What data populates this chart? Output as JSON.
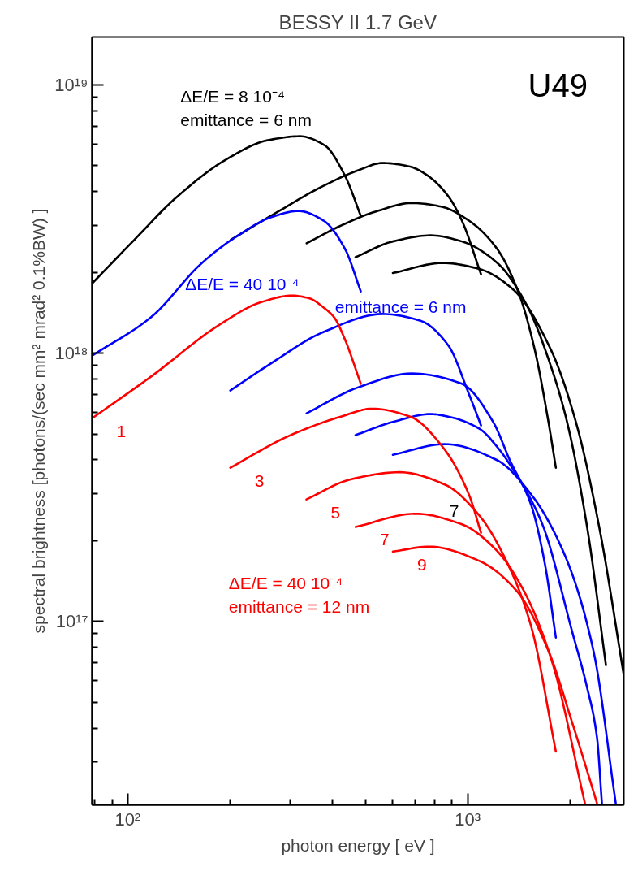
{
  "chart_data": {
    "type": "line",
    "title": "BESSY II 1.7 GeV",
    "xlabel": "photon energy [ eV ]",
    "ylabel": "spectral brightness [photons/(sec mm² mrad² 0.1%BW) ]",
    "log": "xy",
    "xlim": [
      78.6,
      2880
    ],
    "ylim": [
      2.07e+16,
      1.51e+19
    ],
    "xticks": [
      {
        "value": 80,
        "label": null
      },
      {
        "value": 90,
        "label": null
      },
      {
        "value": 100,
        "label": "10²"
      },
      {
        "value": 200,
        "label": null
      },
      {
        "value": 300,
        "label": null
      },
      {
        "value": 400,
        "label": null
      },
      {
        "value": 500,
        "label": null
      },
      {
        "value": 600,
        "label": null
      },
      {
        "value": 700,
        "label": null
      },
      {
        "value": 800,
        "label": null
      },
      {
        "value": 900,
        "label": null
      },
      {
        "value": 1000,
        "label": "10³"
      },
      {
        "value": 2000,
        "label": null
      }
    ],
    "yticks": [
      {
        "value": 3e+16,
        "label": null
      },
      {
        "value": 4e+16,
        "label": null
      },
      {
        "value": 5e+16,
        "label": null
      },
      {
        "value": 6e+16,
        "label": null
      },
      {
        "value": 7e+16,
        "label": null
      },
      {
        "value": 8e+16,
        "label": null
      },
      {
        "value": 9e+16,
        "label": null
      },
      {
        "value": 1e+17,
        "label": "10¹⁷"
      },
      {
        "value": 2e+17,
        "label": null
      },
      {
        "value": 3e+17,
        "label": null
      },
      {
        "value": 4e+17,
        "label": null
      },
      {
        "value": 5e+17,
        "label": null
      },
      {
        "value": 6e+17,
        "label": null
      },
      {
        "value": 7e+17,
        "label": null
      },
      {
        "value": 8e+17,
        "label": null
      },
      {
        "value": 9e+17,
        "label": null
      },
      {
        "value": 1e+18,
        "label": "10¹⁸"
      },
      {
        "value": 2e+18,
        "label": null
      },
      {
        "value": 3e+18,
        "label": null
      },
      {
        "value": 4e+18,
        "label": null
      },
      {
        "value": 5e+18,
        "label": null
      },
      {
        "value": 6e+18,
        "label": null
      },
      {
        "value": 7e+18,
        "label": null
      },
      {
        "value": 8e+18,
        "label": null
      },
      {
        "value": 9e+18,
        "label": null
      },
      {
        "value": 1e+19,
        "label": "10¹⁹"
      }
    ],
    "line_style": "solid",
    "series": [
      {
        "color": "#000000",
        "x": [
          78.6,
          101.7,
          141,
          196,
          258,
          321,
          379,
          435,
          485
        ],
        "values": [
          1.82e+18,
          2.55e+18,
          3.87e+18,
          5.3e+18,
          6.22e+18,
          6.44e+18,
          5.97e+18,
          4.61e+18,
          3.25e+18
        ]
      },
      {
        "color": "#000000",
        "x": [
          201.3,
          271.3,
          377,
          477,
          562,
          677.6,
          760,
          877,
          962,
          1095
        ],
        "values": [
          2.65e+18,
          3.32e+18,
          4.21e+18,
          4.81e+18,
          5.12e+18,
          4.96e+18,
          4.61e+18,
          3.85e+18,
          3.12e+18,
          1.97e+18
        ]
      },
      {
        "color": "#000000",
        "x": [
          336,
          424,
          535.5,
          685,
          836,
          1009,
          1218,
          1413,
          1576,
          1730,
          1818
        ],
        "values": [
          2.57e+18,
          2.99e+18,
          3.37e+18,
          3.63e+18,
          3.52e+18,
          3.12e+18,
          2.46e+18,
          1.68e+18,
          1.03e+18,
          5.52e+17,
          3.74e+17
        ]
      },
      {
        "color": "#000000",
        "x": [
          468,
          602.6,
          779.6,
          962,
          1218,
          1493,
          1758,
          1963,
          2250,
          2552
        ],
        "values": [
          2.28e+18,
          2.61e+18,
          2.75e+18,
          2.61e+18,
          2.18e+18,
          1.51e+18,
          8.94e+17,
          5.52e+17,
          2.22e+17,
          6.86e+16
        ]
      },
      {
        "color": "#000000",
        "x": [
          602.6,
          846,
          1083,
          1367,
          1758,
          2084,
          2443,
          2880
        ],
        "values": [
          1.99e+18,
          2.17e+18,
          2.06e+18,
          1.72e+18,
          1.03e+18,
          5.52e+17,
          2.22e+17,
          6.31e+16
        ]
      },
      {
        "color": "#0000ff",
        "x": [
          78.6,
          117,
          166,
          209.6,
          265.4,
          318,
          377,
          435,
          485
        ],
        "values": [
          9.79e+17,
          1.36e+18,
          2.18e+18,
          2.73e+18,
          3.22e+18,
          3.39e+18,
          3.12e+18,
          2.46e+18,
          1.7e+18
        ]
      },
      {
        "color": "#0000ff",
        "x": [
          200.4,
          265.4,
          377,
          562,
          727.8,
          877,
          1009,
          1095
        ],
        "values": [
          7.26e+17,
          9.2e+17,
          1.2e+18,
          1.4e+18,
          1.32e+18,
          1.07e+18,
          7.04e+17,
          5.38e+17
        ]
      },
      {
        "color": "#0000ff",
        "x": [
          336,
          477,
          685,
          962,
          1189,
          1330,
          1539,
          1689,
          1818
        ],
        "values": [
          5.97e+17,
          7.46e+17,
          8.4e+17,
          7.69e+17,
          5.54e+17,
          4e+17,
          2.71e+17,
          1.63e+17,
          8.7e+16
        ]
      },
      {
        "color": "#0000ff",
        "x": [
          468,
          602.6,
          779.6,
          877,
          1083,
          1217,
          1367,
          1651,
          2037,
          2239,
          2402,
          2483
        ],
        "values": [
          4.95e+17,
          5.54e+17,
          5.93e+17,
          5.8e+17,
          5.23e+17,
          4.5e+17,
          3.65e+17,
          2.34e+17,
          9.01e+16,
          5.76e+16,
          3.69e+16,
          2.1e+16
        ]
      },
      {
        "color": "#0000ff",
        "x": [
          602.6,
          856,
          1217,
          1539,
          1941,
          2346,
          2727
        ],
        "values": [
          4.18e+17,
          4.58e+17,
          4e+17,
          2.97e+17,
          1.74e+17,
          7.75e+16,
          2.1e+16
        ]
      },
      {
        "name": "1",
        "color": "#ff0000",
        "x": [
          78.6,
          117,
          186.8,
          247,
          304.3,
          343,
          377,
          405,
          435,
          485
        ],
        "values": [
          5.72e+17,
          8.17e+17,
          1.28e+18,
          1.55e+18,
          1.64e+18,
          1.6e+18,
          1.48e+18,
          1.36e+18,
          1.13e+18,
          7.69e+17
        ]
      },
      {
        "name": "3",
        "color": "#ff0000",
        "x": [
          200.4,
          298.4,
          424,
          523.6,
          677.6,
          856,
          1009,
          1095
        ],
        "values": [
          3.74e+17,
          4.92e+17,
          5.8e+17,
          6.21e+17,
          5.8e+17,
          4.37e+17,
          2.97e+17,
          2.14e+17
        ]
      },
      {
        "name": "5",
        "color": "#ff0000",
        "x": [
          335.6,
          454.8,
          631,
          856,
          1083,
          1330,
          1539,
          1818
        ],
        "values": [
          2.85e+17,
          3.39e+17,
          3.6e+17,
          3.24e+17,
          2.48e+17,
          1.58e+17,
          9.55e+16,
          3.27e+16
        ]
      },
      {
        "name": "7",
        "color": "#ff0000",
        "x": [
          468,
          702,
          962,
          1217,
          1468,
          1771,
          2213
        ],
        "values": [
          2.25e+17,
          2.52e+17,
          2.3e+17,
          1.84e+17,
          1.29e+17,
          7.09e+16,
          2.1e+16
        ]
      },
      {
        "name": "9",
        "color": "#ff0000",
        "x": [
          602.6,
          771,
          1083,
          1401,
          1730,
          2037,
          2402
        ],
        "values": [
          1.82e+17,
          1.9e+17,
          1.68e+17,
          1.29e+17,
          7.75e+16,
          4.14e+16,
          2.1e+16
        ]
      }
    ],
    "annotations": [
      "U49",
      "ΔE/E = 8 10⁻⁴",
      "emittance = 6 nm",
      "ΔE/E = 40 10⁻⁴",
      "emittance = 6 nm",
      "ΔE/E = 40 10⁻⁴",
      "emittance = 12 nm",
      "7"
    ]
  }
}
